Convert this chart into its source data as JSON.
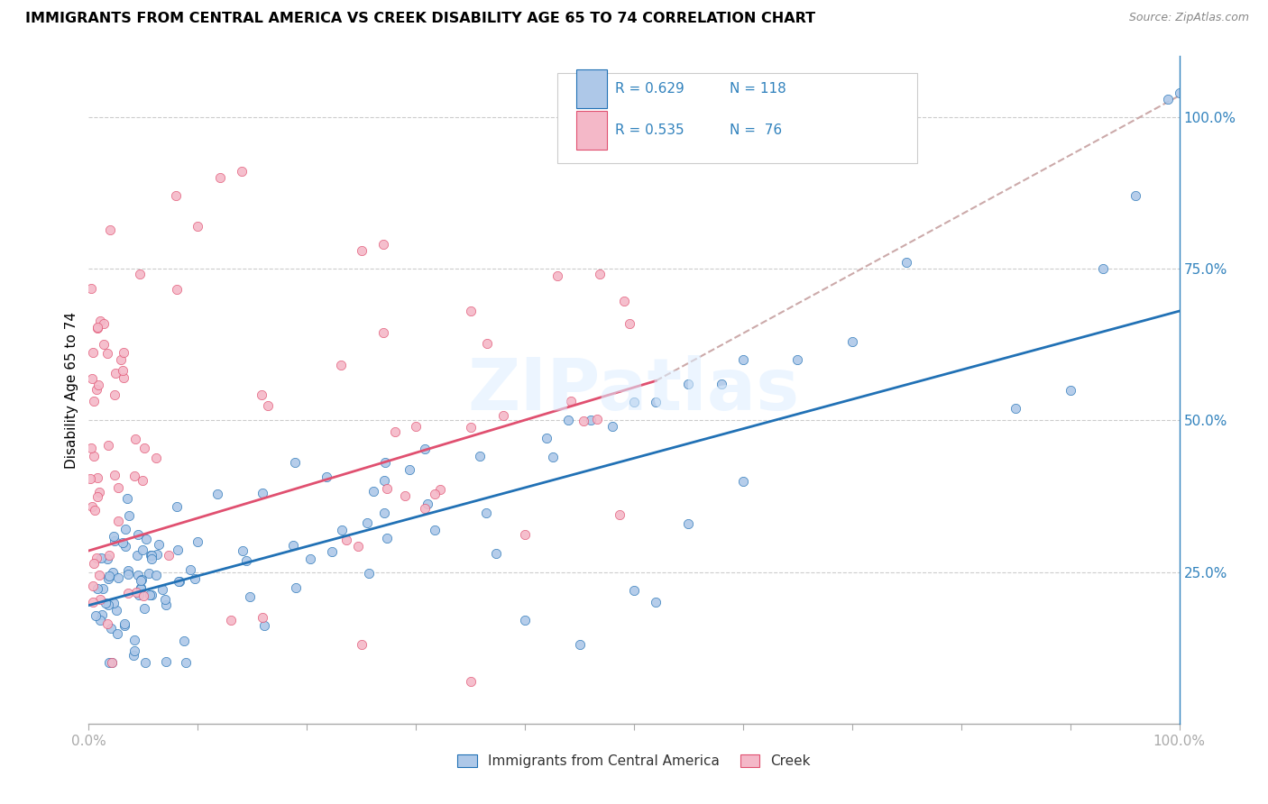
{
  "title": "IMMIGRANTS FROM CENTRAL AMERICA VS CREEK DISABILITY AGE 65 TO 74 CORRELATION CHART",
  "source": "Source: ZipAtlas.com",
  "ylabel": "Disability Age 65 to 74",
  "legend_label_1": "Immigrants from Central America",
  "legend_label_2": "Creek",
  "R1": 0.629,
  "N1": 118,
  "R2": 0.535,
  "N2": 76,
  "color_blue": "#aec8e8",
  "color_pink": "#f4b8c8",
  "color_blue_dark": "#2171b5",
  "color_pink_dark": "#e05070",
  "color_blue_text": "#3182bd",
  "line_dashed_color": "#ccaaaa",
  "xlim": [
    0.0,
    1.0
  ],
  "ylim_min": 0.0,
  "ylim_max": 1.1,
  "ytick_vals": [
    0.25,
    0.5,
    0.75,
    1.0
  ],
  "ytick_labels": [
    "25.0%",
    "50.0%",
    "75.0%",
    "100.0%"
  ],
  "watermark": "ZIPatlas",
  "blue_line_x": [
    0.0,
    1.0
  ],
  "blue_line_y": [
    0.195,
    0.68
  ],
  "pink_line_x": [
    0.0,
    0.52
  ],
  "pink_line_y": [
    0.285,
    0.565
  ],
  "dashed_line_x": [
    0.52,
    1.0
  ],
  "dashed_line_y": [
    0.565,
    1.035
  ],
  "grid_color": "#cccccc",
  "grid_linestyle": "--",
  "spine_color": "#aaaaaa"
}
